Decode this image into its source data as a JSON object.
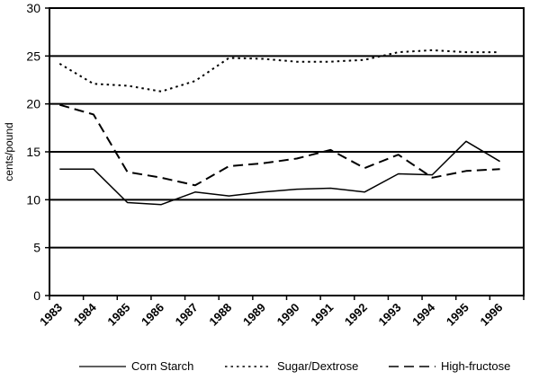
{
  "chart_data": {
    "type": "line",
    "title": "",
    "xlabel": "",
    "ylabel": "cents/pound",
    "ylim": [
      0,
      30
    ],
    "yticks": [
      0,
      5,
      10,
      15,
      20,
      25,
      30
    ],
    "grid": "horizontal",
    "legend_position": "bottom",
    "categories": [
      "1983",
      "1984",
      "1985",
      "1986",
      "1987",
      "1988",
      "1989",
      "1990",
      "1991",
      "1992",
      "1993",
      "1994",
      "1995",
      "1996"
    ],
    "series": [
      {
        "name": "Corn Starch",
        "dash": "solid",
        "x": [
          1983.3,
          1984.3,
          1985.3,
          1986.3,
          1987.3,
          1988.3,
          1989.3,
          1990.3,
          1991.3,
          1992.3,
          1993.3,
          1994.3,
          1995.3,
          1996.3
        ],
        "values": [
          13.2,
          13.2,
          9.7,
          9.5,
          10.8,
          10.4,
          10.8,
          11.1,
          11.2,
          10.8,
          12.7,
          12.6,
          16.1,
          14.0
        ]
      },
      {
        "name": "Sugar/Dextrose",
        "dash": "dotted",
        "x": [
          1983.3,
          1984.3,
          1985.3,
          1986.3,
          1987.3,
          1988.3,
          1989.3,
          1990.3,
          1991.3,
          1992.3,
          1993.3,
          1994.3,
          1995.3,
          1996.3
        ],
        "values": [
          24.2,
          22.1,
          21.9,
          21.3,
          22.4,
          24.8,
          24.7,
          24.4,
          24.4,
          24.6,
          25.4,
          25.6,
          25.4,
          25.4
        ]
      },
      {
        "name": "High-fructose",
        "dash": "dashed",
        "x": [
          1983.3,
          1984.3,
          1985.3,
          1986.3,
          1987.3,
          1988.3,
          1989.3,
          1990.3,
          1991.3,
          1992.3,
          1993.3,
          1994.3,
          1995.3,
          1996.3
        ],
        "values": [
          19.9,
          18.9,
          12.9,
          12.3,
          11.5,
          13.5,
          13.8,
          14.3,
          15.2,
          13.3,
          14.7,
          12.3,
          13.0,
          13.2
        ]
      }
    ]
  }
}
